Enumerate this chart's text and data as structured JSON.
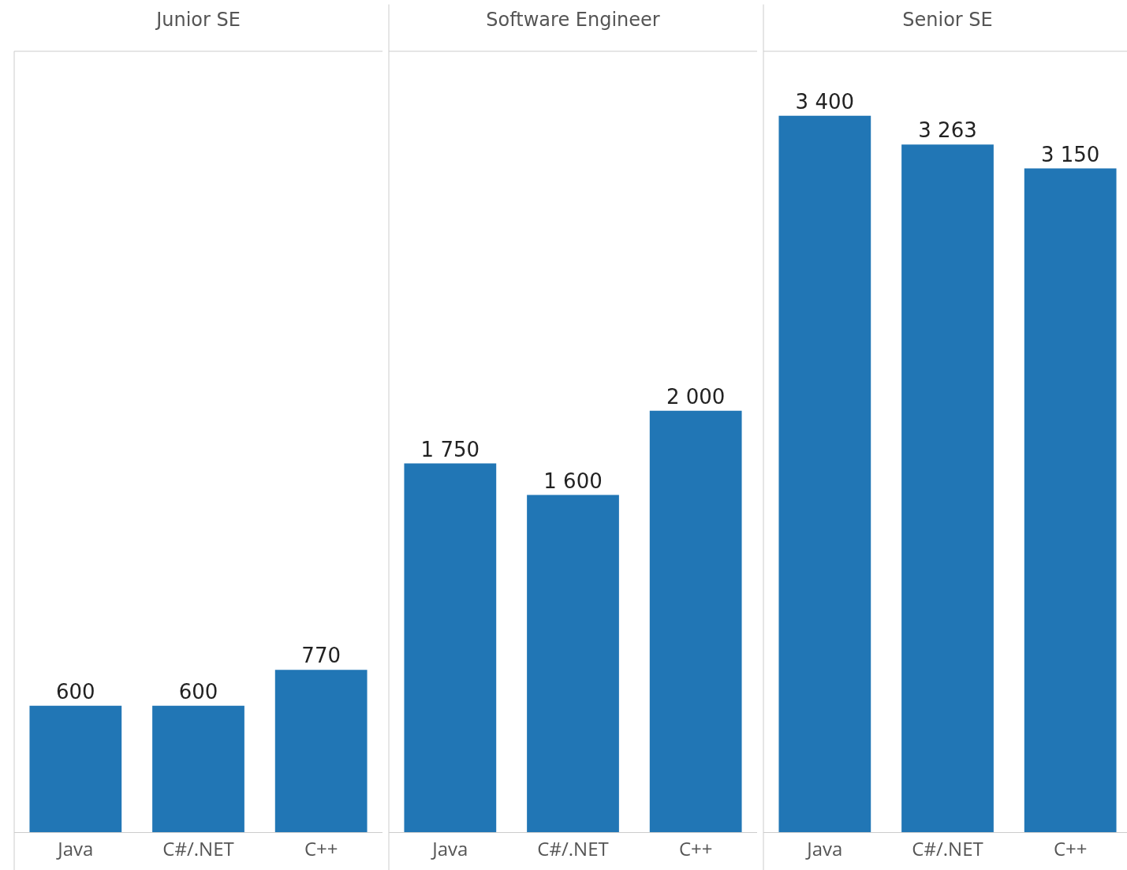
{
  "chart_data": [
    {
      "type": "bar",
      "title": "Junior SE",
      "categories": [
        "Java",
        "C#/.NET",
        "C++"
      ],
      "values": [
        600,
        600,
        770
      ],
      "value_labels": [
        "600",
        "600",
        "770"
      ],
      "color": "#2176b5"
    },
    {
      "type": "bar",
      "title": "Software Engineer",
      "categories": [
        "Java",
        "C#/.NET",
        "C++"
      ],
      "values": [
        1750,
        1600,
        2000
      ],
      "value_labels": [
        "1 750",
        "1 600",
        "2 000"
      ],
      "color": "#2176b5"
    },
    {
      "type": "bar",
      "title": "Senior SE",
      "categories": [
        "Java",
        "C#/.NET",
        "C++"
      ],
      "values": [
        3400,
        3263,
        3150
      ],
      "value_labels": [
        "3 400",
        "3 263",
        "3 150"
      ],
      "color": "#2176b5"
    }
  ]
}
